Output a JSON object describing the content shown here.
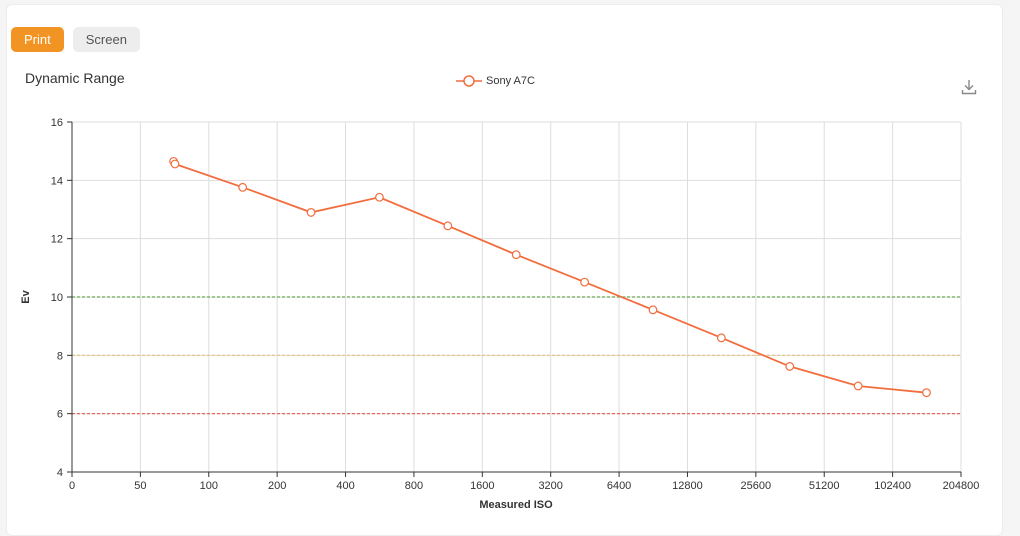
{
  "tabs": [
    {
      "label": "Print",
      "active": true
    },
    {
      "label": "Screen",
      "active": false
    }
  ],
  "colors": {
    "accent": "#f29423",
    "series": "#f26d3d",
    "ref_green": "#6aa84f",
    "ref_yellow": "#e6c27a",
    "ref_red": "#e05a4f"
  },
  "chart_data": {
    "type": "line",
    "title": "Dynamic Range",
    "xlabel": "Measured ISO",
    "ylabel": "Ev",
    "x_scale": "log2",
    "x_ticks": [
      "0",
      "50",
      "100",
      "200",
      "400",
      "800",
      "1600",
      "3200",
      "6400",
      "12800",
      "25600",
      "51200",
      "102400",
      "204800"
    ],
    "ylim": [
      4,
      16
    ],
    "y_ticks": [
      4,
      6,
      8,
      10,
      12,
      14,
      16
    ],
    "grid": true,
    "legend_position": "top-center",
    "reference_lines": [
      {
        "y": 10,
        "color": "#6aa84f",
        "style": "dashed"
      },
      {
        "y": 8,
        "color": "#e6c27a",
        "style": "dashed"
      },
      {
        "y": 6,
        "color": "#e05a4f",
        "style": "dashed"
      }
    ],
    "series": [
      {
        "name": "Sony A7C",
        "color": "#f26d3d",
        "points": [
          {
            "x": 70,
            "y": 14.65
          },
          {
            "x": 71,
            "y": 14.56
          },
          {
            "x": 141,
            "y": 13.76
          },
          {
            "x": 282,
            "y": 12.9
          },
          {
            "x": 564,
            "y": 13.42
          },
          {
            "x": 1128,
            "y": 12.44
          },
          {
            "x": 2256,
            "y": 11.45
          },
          {
            "x": 4512,
            "y": 10.51
          },
          {
            "x": 9024,
            "y": 9.56
          },
          {
            "x": 18048,
            "y": 8.6
          },
          {
            "x": 36096,
            "y": 7.62
          },
          {
            "x": 72192,
            "y": 6.95
          },
          {
            "x": 144384,
            "y": 6.72
          }
        ]
      }
    ]
  }
}
